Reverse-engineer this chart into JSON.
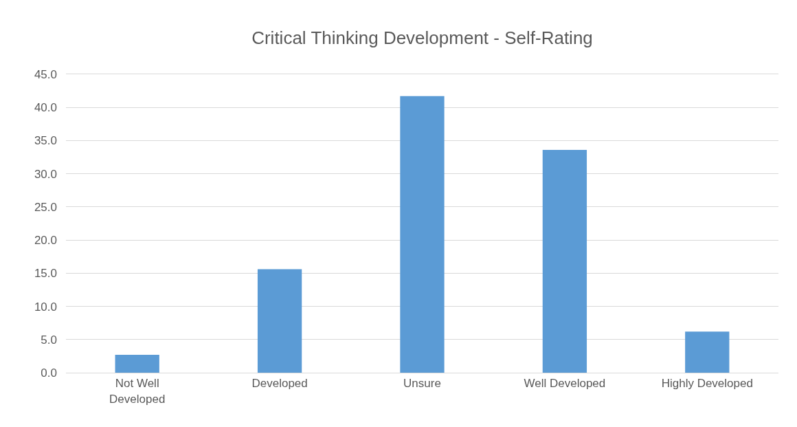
{
  "chart_data": {
    "type": "bar",
    "title": "Critical Thinking Development - Self-Rating",
    "categories": [
      "Not Well\nDeveloped",
      "Developed",
      "Unsure",
      "Well Developed",
      "Highly Developed"
    ],
    "values": [
      2.7,
      15.6,
      41.7,
      33.6,
      6.2
    ],
    "color": "#5b9bd5",
    "ylim": [
      0,
      45
    ],
    "yticks": [
      {
        "value": 0,
        "label": "0.0"
      },
      {
        "value": 5,
        "label": "5.0"
      },
      {
        "value": 10,
        "label": "10.0"
      },
      {
        "value": 15,
        "label": "15.0"
      },
      {
        "value": 20,
        "label": "20.0"
      },
      {
        "value": 25,
        "label": "25.0"
      },
      {
        "value": 30,
        "label": "30.0"
      },
      {
        "value": 35,
        "label": "35.0"
      },
      {
        "value": 40,
        "label": "40.0"
      },
      {
        "value": 45,
        "label": "45.0"
      }
    ],
    "grid": "y"
  }
}
